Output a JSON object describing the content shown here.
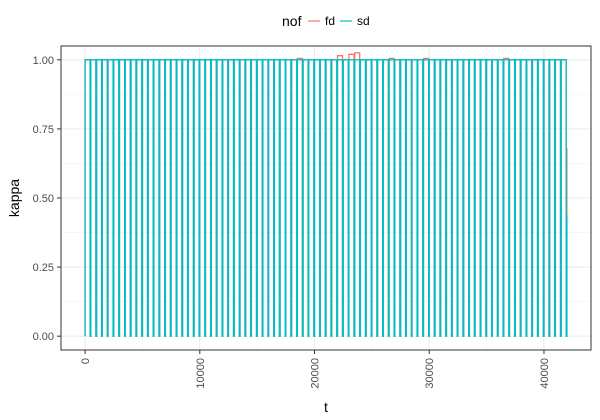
{
  "chart_data": {
    "type": "line",
    "xlabel": "t",
    "ylabel": "kappa",
    "xlim": [
      -2100,
      44100
    ],
    "ylim": [
      -0.05,
      1.05
    ],
    "x_ticks": [
      0,
      10000,
      20000,
      30000,
      40000
    ],
    "x_tick_labels": [
      "0",
      "10000",
      "20000",
      "30000",
      "40000"
    ],
    "y_ticks": [
      0.0,
      0.25,
      0.5,
      0.75,
      1.0
    ],
    "y_tick_labels": [
      "0.00",
      "0.25",
      "0.50",
      "0.75",
      "1.00"
    ],
    "grid": true,
    "legend": {
      "title": "nof",
      "position": "top",
      "entries": [
        "fd",
        "sd"
      ]
    },
    "colors": {
      "fd": "#F8766D",
      "sd": "#00BFC4"
    },
    "pattern": {
      "description": "square pulse train switching between 0 and 1",
      "start": 0,
      "end": 42000,
      "period": 500,
      "high_duration": 440,
      "high_value": 1.0,
      "low_value": 0.0
    },
    "series": [
      {
        "name": "fd",
        "final_value": 0.68,
        "overshoots": [
          [
            18400,
            1.005
          ],
          [
            21900,
            1.01
          ],
          [
            22200,
            1.015
          ],
          [
            23200,
            1.02
          ],
          [
            23400,
            1.025
          ],
          [
            26600,
            1.005
          ],
          [
            29400,
            1.005
          ],
          [
            36600,
            1.005
          ]
        ]
      },
      {
        "name": "sd",
        "final_value": 0.44,
        "overshoots": []
      }
    ]
  }
}
